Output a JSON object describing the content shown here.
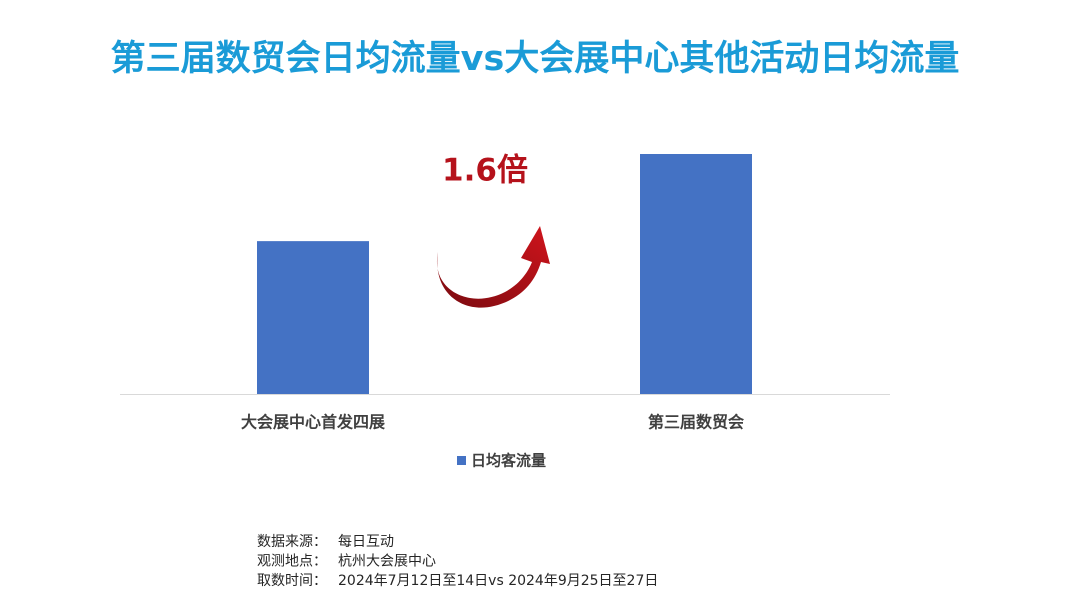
{
  "chart_data": {
    "type": "bar",
    "title": "第三届数贸会日均流量vs大会展中心其他活动日均流量",
    "annotation": "1.6倍",
    "categories": [
      "大会展中心首发四展",
      "第三届数贸会"
    ],
    "series": [
      {
        "name": "日均客流量",
        "color": "#4472c4",
        "values": [
          1,
          1.57
        ]
      }
    ],
    "legend": "bottom",
    "footer": [
      {
        "label": "数据来源：",
        "value": "每日互动"
      },
      {
        "label": "观测地点：",
        "value": "杭州大会展中心"
      },
      {
        "label": "取数时间：",
        "value": "2024年7月12日至14日vs 2024年9月25日至27日"
      }
    ]
  }
}
